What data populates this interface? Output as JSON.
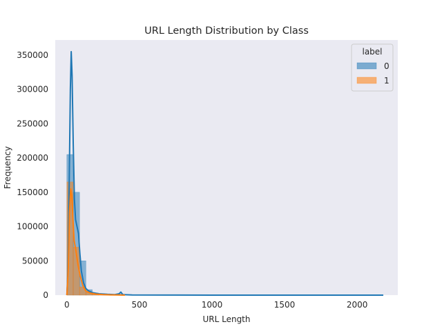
{
  "chart_data": {
    "type": "histogram",
    "title": "URL Length Distribution by Class",
    "xlabel": "URL Length",
    "ylabel": "Frequency",
    "xlim": [
      -80,
      2280
    ],
    "ylim": [
      0,
      372000
    ],
    "xticks": [
      0,
      500,
      1000,
      1500,
      2000
    ],
    "yticks": [
      0,
      50000,
      100000,
      150000,
      200000,
      250000,
      300000,
      350000
    ],
    "grid": false,
    "background": "#EAEAF2",
    "bin_edges": [
      0,
      43.7,
      87.4,
      131.1,
      174.8,
      218.5,
      262.2,
      305.9,
      349.6,
      393.3
    ],
    "legend": {
      "title": "label",
      "placement": "top-right"
    },
    "series": [
      {
        "name": "0",
        "color": "#1f77b4",
        "counts": [
          205000,
          150000,
          50000,
          8000,
          3000,
          1500,
          1000,
          500,
          1500
        ],
        "kde": [
          [
            0,
            0
          ],
          [
            8,
            40000
          ],
          [
            16,
            160000
          ],
          [
            24,
            300000
          ],
          [
            30,
            355000
          ],
          [
            36,
            320000
          ],
          [
            44,
            220000
          ],
          [
            52,
            140000
          ],
          [
            60,
            110000
          ],
          [
            70,
            100000
          ],
          [
            80,
            90000
          ],
          [
            90,
            60000
          ],
          [
            100,
            35000
          ],
          [
            115,
            18000
          ],
          [
            130,
            10000
          ],
          [
            150,
            6000
          ],
          [
            180,
            3500
          ],
          [
            220,
            2000
          ],
          [
            280,
            1200
          ],
          [
            330,
            800
          ],
          [
            360,
            2000
          ],
          [
            372,
            4500
          ],
          [
            385,
            800
          ],
          [
            450,
            300
          ],
          [
            700,
            100
          ],
          [
            1000,
            50
          ],
          [
            1500,
            20
          ],
          [
            2000,
            10
          ],
          [
            2180,
            0
          ]
        ]
      },
      {
        "name": "1",
        "color": "#ff7f0e",
        "counts": [
          165000,
          70000,
          12000,
          4000,
          2000,
          800,
          400,
          200,
          100
        ],
        "kde": [
          [
            0,
            0
          ],
          [
            10,
            40000
          ],
          [
            18,
            120000
          ],
          [
            26,
            155000
          ],
          [
            34,
            145000
          ],
          [
            42,
            110000
          ],
          [
            50,
            80000
          ],
          [
            58,
            70000
          ],
          [
            66,
            60000
          ],
          [
            76,
            45000
          ],
          [
            90,
            30000
          ],
          [
            110,
            14000
          ],
          [
            130,
            6000
          ],
          [
            160,
            3000
          ],
          [
            200,
            1500
          ],
          [
            250,
            800
          ],
          [
            300,
            400
          ],
          [
            350,
            200
          ],
          [
            400,
            0
          ]
        ]
      }
    ]
  }
}
